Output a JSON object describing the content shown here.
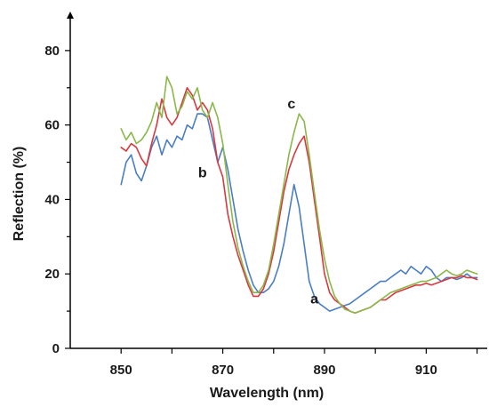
{
  "chart_data": {
    "type": "line",
    "title": "",
    "xlabel": "Wavelength (nm)",
    "ylabel": "Reflection (%)",
    "xlim": [
      840,
      922
    ],
    "ylim": [
      0,
      90
    ],
    "x_ticks": [
      850,
      870,
      890,
      910
    ],
    "y_ticks": [
      0,
      20,
      40,
      60,
      80
    ],
    "grid": false,
    "series": [
      {
        "name": "a",
        "color": "#4a7ec4",
        "points": [
          [
            850,
            44
          ],
          [
            851,
            50
          ],
          [
            852,
            52
          ],
          [
            853,
            47
          ],
          [
            854,
            45
          ],
          [
            855,
            49
          ],
          [
            856,
            54
          ],
          [
            857,
            57
          ],
          [
            858,
            52
          ],
          [
            859,
            56
          ],
          [
            860,
            54
          ],
          [
            861,
            57
          ],
          [
            862,
            56
          ],
          [
            863,
            60
          ],
          [
            864,
            59
          ],
          [
            865,
            63
          ],
          [
            866,
            63
          ],
          [
            867,
            62
          ],
          [
            868,
            56
          ],
          [
            869,
            50
          ],
          [
            870,
            54
          ],
          [
            871,
            48
          ],
          [
            872,
            40
          ],
          [
            873,
            32
          ],
          [
            874,
            26
          ],
          [
            875,
            21
          ],
          [
            876,
            17
          ],
          [
            877,
            15
          ],
          [
            878,
            15
          ],
          [
            879,
            16
          ],
          [
            880,
            18
          ],
          [
            881,
            22
          ],
          [
            882,
            28
          ],
          [
            883,
            36
          ],
          [
            884,
            44
          ],
          [
            885,
            38
          ],
          [
            886,
            28
          ],
          [
            887,
            18
          ],
          [
            888,
            14
          ],
          [
            889,
            12
          ],
          [
            890,
            11
          ],
          [
            891,
            10
          ],
          [
            892,
            10.5
          ],
          [
            893,
            11
          ],
          [
            894,
            11.5
          ],
          [
            895,
            12
          ],
          [
            896,
            13
          ],
          [
            897,
            14
          ],
          [
            898,
            15
          ],
          [
            899,
            16
          ],
          [
            900,
            17
          ],
          [
            901,
            18
          ],
          [
            902,
            18
          ],
          [
            903,
            19
          ],
          [
            904,
            20
          ],
          [
            905,
            21
          ],
          [
            906,
            20
          ],
          [
            907,
            22
          ],
          [
            908,
            21
          ],
          [
            909,
            20
          ],
          [
            910,
            22
          ],
          [
            911,
            21
          ],
          [
            912,
            19
          ],
          [
            913,
            18
          ],
          [
            914,
            19
          ],
          [
            915,
            19
          ],
          [
            916,
            18.5
          ],
          [
            917,
            19
          ],
          [
            918,
            20
          ],
          [
            919,
            19
          ],
          [
            920,
            19
          ]
        ]
      },
      {
        "name": "b",
        "color": "#d8383f",
        "points": [
          [
            850,
            54
          ],
          [
            851,
            53
          ],
          [
            852,
            55
          ],
          [
            853,
            54
          ],
          [
            854,
            51
          ],
          [
            855,
            49
          ],
          [
            856,
            55
          ],
          [
            857,
            60
          ],
          [
            858,
            67
          ],
          [
            859,
            62
          ],
          [
            860,
            60
          ],
          [
            861,
            62
          ],
          [
            862,
            66
          ],
          [
            863,
            70
          ],
          [
            864,
            68
          ],
          [
            865,
            64
          ],
          [
            866,
            66
          ],
          [
            867,
            64
          ],
          [
            868,
            59
          ],
          [
            869,
            50
          ],
          [
            870,
            46
          ],
          [
            871,
            36
          ],
          [
            872,
            30
          ],
          [
            873,
            25
          ],
          [
            874,
            21
          ],
          [
            875,
            17
          ],
          [
            876,
            14
          ],
          [
            877,
            14
          ],
          [
            878,
            16
          ],
          [
            879,
            20
          ],
          [
            880,
            26
          ],
          [
            881,
            34
          ],
          [
            882,
            42
          ],
          [
            883,
            48
          ],
          [
            884,
            52
          ],
          [
            885,
            55
          ],
          [
            886,
            57
          ],
          [
            887,
            50
          ],
          [
            888,
            40
          ],
          [
            889,
            30
          ],
          [
            890,
            20
          ],
          [
            891,
            15
          ],
          [
            892,
            13
          ],
          [
            893,
            12
          ],
          [
            894,
            11
          ],
          [
            895,
            10
          ],
          [
            896,
            9.5
          ],
          [
            897,
            10
          ],
          [
            898,
            10.5
          ],
          [
            899,
            11
          ],
          [
            900,
            12
          ],
          [
            901,
            13
          ],
          [
            902,
            13
          ],
          [
            903,
            14
          ],
          [
            904,
            15
          ],
          [
            905,
            15.5
          ],
          [
            906,
            16
          ],
          [
            907,
            16.5
          ],
          [
            908,
            17
          ],
          [
            909,
            17
          ],
          [
            910,
            17.5
          ],
          [
            911,
            17
          ],
          [
            912,
            17.5
          ],
          [
            913,
            18
          ],
          [
            914,
            18.5
          ],
          [
            915,
            19
          ],
          [
            916,
            19
          ],
          [
            917,
            19.5
          ],
          [
            918,
            19
          ],
          [
            919,
            19
          ],
          [
            920,
            18.5
          ]
        ]
      },
      {
        "name": "c",
        "color": "#8ab84a",
        "points": [
          [
            850,
            59
          ],
          [
            851,
            56
          ],
          [
            852,
            58
          ],
          [
            853,
            55
          ],
          [
            854,
            56
          ],
          [
            855,
            58
          ],
          [
            856,
            61
          ],
          [
            857,
            66
          ],
          [
            858,
            62
          ],
          [
            859,
            73
          ],
          [
            860,
            70
          ],
          [
            861,
            63
          ],
          [
            862,
            65
          ],
          [
            863,
            69
          ],
          [
            864,
            67
          ],
          [
            865,
            70
          ],
          [
            866,
            64
          ],
          [
            867,
            62
          ],
          [
            868,
            66
          ],
          [
            869,
            62
          ],
          [
            870,
            55
          ],
          [
            871,
            44
          ],
          [
            872,
            34
          ],
          [
            873,
            27
          ],
          [
            874,
            22
          ],
          [
            875,
            18
          ],
          [
            876,
            15
          ],
          [
            877,
            15
          ],
          [
            878,
            17
          ],
          [
            879,
            21
          ],
          [
            880,
            28
          ],
          [
            881,
            36
          ],
          [
            882,
            44
          ],
          [
            883,
            52
          ],
          [
            884,
            58
          ],
          [
            885,
            63
          ],
          [
            886,
            61
          ],
          [
            887,
            52
          ],
          [
            888,
            42
          ],
          [
            889,
            32
          ],
          [
            890,
            24
          ],
          [
            891,
            18
          ],
          [
            892,
            14
          ],
          [
            893,
            12
          ],
          [
            894,
            10.5
          ],
          [
            895,
            10
          ],
          [
            896,
            9.5
          ],
          [
            897,
            10
          ],
          [
            898,
            10.5
          ],
          [
            899,
            11
          ],
          [
            900,
            12
          ],
          [
            901,
            13
          ],
          [
            902,
            14
          ],
          [
            903,
            15
          ],
          [
            904,
            15.5
          ],
          [
            905,
            16
          ],
          [
            906,
            16.5
          ],
          [
            907,
            17
          ],
          [
            908,
            17.5
          ],
          [
            909,
            18
          ],
          [
            910,
            18
          ],
          [
            911,
            18.5
          ],
          [
            912,
            19
          ],
          [
            913,
            20
          ],
          [
            914,
            21
          ],
          [
            915,
            20
          ],
          [
            916,
            19.5
          ],
          [
            917,
            20
          ],
          [
            918,
            21
          ],
          [
            919,
            20.5
          ],
          [
            920,
            20
          ]
        ]
      }
    ],
    "annotations": [
      {
        "text": "a",
        "series": "a",
        "x": 888,
        "y": 12
      },
      {
        "text": "b",
        "series": "b",
        "x": 866,
        "y": 46
      },
      {
        "text": "c",
        "series": "c",
        "x": 883.5,
        "y": 64.5
      }
    ]
  }
}
